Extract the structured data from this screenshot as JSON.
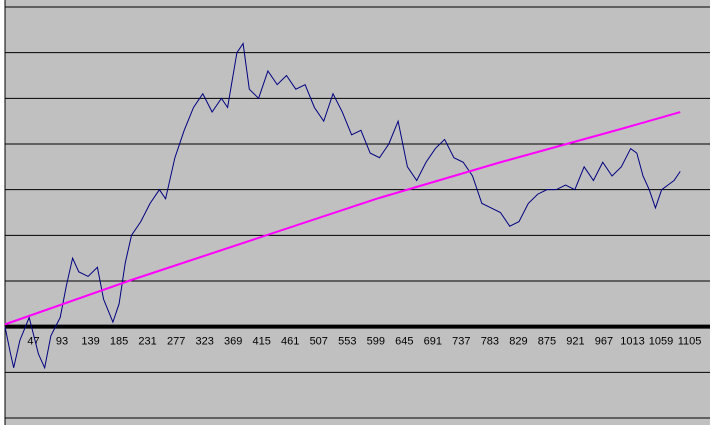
{
  "chart_data": {
    "type": "line",
    "xlim": [
      1,
      1138
    ],
    "xticks": [
      47,
      93,
      139,
      185,
      231,
      277,
      323,
      369,
      415,
      461,
      507,
      553,
      599,
      645,
      691,
      737,
      783,
      829,
      875,
      921,
      967,
      1013,
      1059,
      1105
    ],
    "ylim": [
      -2,
      7
    ],
    "yticks": [
      -2,
      -1,
      0,
      1,
      2,
      3,
      4,
      5,
      6,
      7
    ],
    "grid": true,
    "background": "#c0c0c0",
    "series": [
      {
        "color": "#000080",
        "x": [
          1,
          10,
          15,
          25,
          40,
          55,
          65,
          75,
          90,
          100,
          110,
          120,
          135,
          150,
          160,
          175,
          185,
          195,
          205,
          220,
          235,
          250,
          260,
          275,
          290,
          305,
          320,
          335,
          350,
          360,
          375,
          385,
          395,
          410,
          425,
          440,
          455,
          470,
          485,
          500,
          515,
          530,
          545,
          560,
          575,
          590,
          605,
          620,
          635,
          650,
          665,
          680,
          695,
          710,
          725,
          740,
          755,
          770,
          785,
          800,
          815,
          830,
          845,
          860,
          875,
          890,
          905,
          920,
          935,
          950,
          965,
          980,
          995,
          1010,
          1020,
          1030,
          1040,
          1050,
          1060,
          1070,
          1080,
          1090
        ],
        "values": [
          0,
          -0.6,
          -0.9,
          -0.3,
          0.2,
          -0.6,
          -0.9,
          -0.2,
          0.2,
          0.9,
          1.5,
          1.2,
          1.1,
          1.3,
          0.6,
          0.1,
          0.5,
          1.4,
          2.0,
          2.3,
          2.7,
          3.0,
          2.8,
          3.7,
          4.3,
          4.8,
          5.1,
          4.7,
          5.0,
          4.8,
          6.0,
          6.2,
          5.2,
          5.0,
          5.6,
          5.3,
          5.5,
          5.2,
          5.3,
          4.8,
          4.5,
          5.1,
          4.7,
          4.2,
          4.3,
          3.8,
          3.7,
          4.0,
          4.5,
          3.5,
          3.2,
          3.6,
          3.9,
          4.1,
          3.7,
          3.6,
          3.3,
          2.7,
          2.6,
          2.5,
          2.2,
          2.3,
          2.7,
          2.9,
          3.0,
          3.0,
          3.1,
          3.0,
          3.5,
          3.2,
          3.6,
          3.3,
          3.5,
          3.9,
          3.8,
          3.3,
          3.0,
          2.6,
          3.0,
          3.1,
          3.2,
          3.4
        ]
      },
      {
        "color": "#ff00ff",
        "x": [
          1,
          200,
          400,
          600,
          800,
          1000,
          1090
        ],
        "values": [
          0.05,
          1.0,
          1.9,
          2.8,
          3.6,
          4.35,
          4.7
        ]
      }
    ]
  }
}
